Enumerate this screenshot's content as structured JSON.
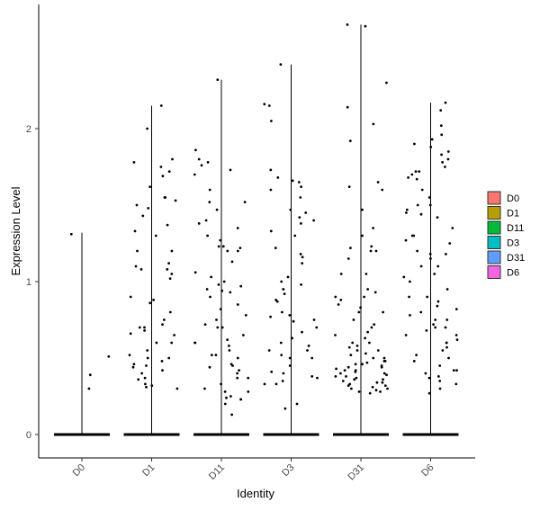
{
  "chart_data": {
    "type": "violin",
    "xlabel": "Identity",
    "ylabel": "Expression Level",
    "ylim": [
      -0.15,
      2.8
    ],
    "yticks": [
      0,
      1,
      2
    ],
    "legend_placement": "right",
    "legend": [
      {
        "name": "D0",
        "color": "#F8766D"
      },
      {
        "name": "D1",
        "color": "#B79F00"
      },
      {
        "name": "D11",
        "color": "#00BA38"
      },
      {
        "name": "D3",
        "color": "#00BFC4"
      },
      {
        "name": "D31",
        "color": "#619CFF"
      },
      {
        "name": "D6",
        "color": "#F564E3"
      }
    ],
    "groups": [
      {
        "name": "D0",
        "max": 1.32,
        "points": [
          0.39,
          1.31,
          0.3,
          0.51
        ]
      },
      {
        "name": "D1",
        "max": 2.15,
        "points": [
          2.15,
          1.75,
          1.78,
          1.8,
          1.69,
          1.72,
          1.55,
          1.43,
          1.37,
          1.33,
          1.3,
          1.2,
          1.1,
          1.08,
          1.05,
          1.02,
          0.9,
          0.86,
          0.75,
          0.7,
          0.7,
          0.68,
          0.65,
          0.6,
          0.55,
          0.5,
          0.5,
          0.46,
          0.44,
          0.4,
          0.37,
          0.32,
          0.3,
          1.62,
          1.55,
          1.5,
          1.48,
          1.2,
          1.12,
          1.08,
          0.88,
          0.8,
          0.72,
          0.66,
          0.6,
          0.52,
          0.48,
          0.45,
          0.42,
          0.36,
          0.33,
          0.31,
          2.0,
          1.53
        ]
      },
      {
        "name": "D11",
        "max": 2.32,
        "points": [
          2.32,
          1.86,
          1.78,
          1.76,
          1.73,
          1.7,
          1.6,
          1.52,
          1.47,
          1.4,
          1.35,
          1.27,
          1.23,
          1.22,
          1.2,
          1.13,
          1.06,
          1.0,
          0.98,
          0.94,
          0.93,
          0.9,
          0.82,
          0.78,
          0.72,
          0.7,
          0.65,
          0.62,
          0.6,
          0.58,
          0.55,
          0.52,
          0.5,
          0.46,
          0.44,
          0.4,
          0.37,
          0.33,
          0.3,
          0.28,
          0.25,
          0.23,
          0.2,
          0.13,
          1.8,
          1.52,
          1.38,
          1.3,
          1.23,
          1.2,
          1.03,
          0.97,
          0.95,
          0.85,
          0.75,
          0.7,
          0.6,
          0.52,
          0.45,
          0.42,
          0.37,
          0.28,
          0.24,
          0.23
        ]
      },
      {
        "name": "D3",
        "max": 2.42,
        "points": [
          2.42,
          2.16,
          1.68,
          1.66,
          1.65,
          1.62,
          1.55,
          1.47,
          1.42,
          1.4,
          1.38,
          1.33,
          1.3,
          1.22,
          1.18,
          1.03,
          1.0,
          0.98,
          0.95,
          0.92,
          0.87,
          0.8,
          0.77,
          0.74,
          0.7,
          0.67,
          0.63,
          0.58,
          0.55,
          0.52,
          0.5,
          0.45,
          0.41,
          0.38,
          0.35,
          0.33,
          0.2,
          0.17,
          2.15,
          2.05,
          1.73,
          1.6,
          1.45,
          1.16,
          1.12,
          0.95,
          0.88,
          0.78,
          0.75,
          0.6,
          0.55,
          0.5,
          0.4,
          0.37,
          0.33
        ]
      },
      {
        "name": "D31",
        "max": 2.68,
        "points": [
          2.68,
          2.67,
          2.3,
          2.14,
          2.03,
          1.92,
          1.65,
          1.62,
          1.47,
          1.35,
          1.3,
          1.23,
          1.2,
          1.15,
          1.05,
          0.93,
          0.9,
          0.88,
          0.83,
          0.8,
          0.75,
          0.7,
          0.67,
          0.63,
          0.6,
          0.58,
          0.55,
          0.53,
          0.52,
          0.5,
          0.48,
          0.47,
          0.46,
          0.45,
          0.44,
          0.43,
          0.42,
          0.41,
          0.4,
          0.39,
          0.38,
          0.37,
          0.36,
          0.35,
          0.34,
          0.33,
          0.32,
          0.31,
          0.3,
          0.29,
          0.28,
          0.27,
          1.6,
          1.22,
          1.2,
          1.05,
          0.95,
          0.9,
          0.85,
          0.8,
          0.72,
          0.65,
          0.6,
          0.57,
          0.55,
          0.5,
          0.48,
          0.46,
          0.44,
          0.42,
          0.4,
          0.38,
          0.36,
          0.34,
          0.32,
          0.3,
          0.28
        ]
      },
      {
        "name": "D6",
        "max": 2.17,
        "points": [
          2.17,
          2.02,
          1.96,
          1.9,
          1.85,
          1.8,
          1.75,
          1.72,
          1.7,
          1.68,
          1.67,
          1.6,
          1.55,
          1.5,
          1.47,
          1.44,
          1.42,
          1.35,
          1.3,
          1.27,
          1.2,
          1.18,
          1.15,
          1.1,
          1.05,
          1.0,
          0.95,
          0.9,
          0.87,
          0.84,
          0.8,
          0.78,
          0.75,
          0.72,
          0.7,
          0.68,
          0.65,
          0.62,
          0.6,
          0.57,
          0.52,
          0.48,
          0.45,
          0.42,
          0.4,
          0.37,
          0.33,
          0.3,
          0.27,
          2.12,
          1.93,
          1.88,
          1.83,
          1.78,
          1.72,
          1.5,
          1.45,
          1.3,
          1.25,
          1.18,
          1.1,
          1.03,
          0.9,
          0.82,
          0.75,
          0.7,
          0.65,
          0.6,
          0.55,
          0.5,
          0.42,
          0.38,
          0.35
        ]
      }
    ]
  }
}
